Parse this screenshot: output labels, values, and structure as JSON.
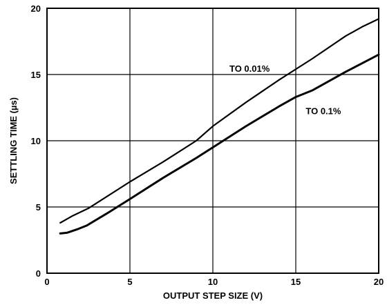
{
  "chart_data": {
    "type": "line",
    "xlabel": "OUTPUT STEP SIZE (V)",
    "ylabel": "SETTLING TIME (µs)",
    "xlim": [
      0,
      20
    ],
    "ylim": [
      0,
      20
    ],
    "x_ticks": [
      0,
      5,
      10,
      15,
      20
    ],
    "y_ticks": [
      0,
      5,
      10,
      15,
      20
    ],
    "grid": true,
    "legend": "none",
    "series": [
      {
        "name": "TO 0.01%",
        "x": [
          0.8,
          1.5,
          2.5,
          3.5,
          5,
          7,
          9,
          10,
          12,
          14,
          16,
          18,
          19,
          20
        ],
        "y": [
          3.8,
          4.3,
          4.9,
          5.7,
          6.9,
          8.4,
          10.0,
          11.1,
          12.9,
          14.6,
          16.2,
          17.9,
          18.6,
          19.2
        ],
        "color": "#000000"
      },
      {
        "name": "TO 0.1%",
        "x": [
          0.8,
          1.2,
          1.8,
          2.4,
          3.0,
          3.6,
          5,
          7,
          9,
          10,
          12,
          14,
          15,
          16,
          18,
          20
        ],
        "y": [
          3.0,
          3.05,
          3.3,
          3.6,
          4.05,
          4.5,
          5.6,
          7.2,
          8.7,
          9.5,
          11.1,
          12.6,
          13.3,
          13.8,
          15.2,
          16.5
        ],
        "color": "#000000"
      }
    ],
    "annotations": [
      {
        "text": "TO 0.01%",
        "x": 11.0,
        "y": 15.2
      },
      {
        "text": "TO 0.1%",
        "x": 15.6,
        "y": 12.0
      }
    ]
  }
}
